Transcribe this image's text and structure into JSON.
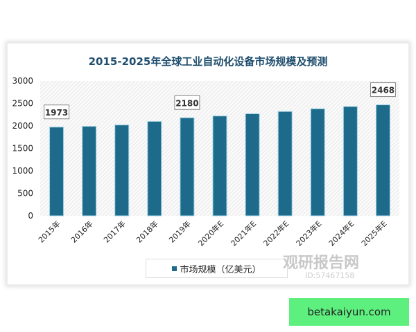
{
  "chart_data": {
    "type": "bar",
    "title": "2015-2025年全球工业自动化设备市场规模及预测",
    "categories": [
      "2015年",
      "2016年",
      "2017年",
      "2018年",
      "2019年",
      "2020年E",
      "2021年E",
      "2022年E",
      "2023年E",
      "2024年E",
      "2025年E"
    ],
    "series": [
      {
        "name": "市场规模（亿美元）",
        "values": [
          1973,
          1990,
          2020,
          2100,
          2180,
          2220,
          2270,
          2320,
          2380,
          2430,
          2468
        ]
      }
    ],
    "data_labels": {
      "0": "1973",
      "4": "2180",
      "10": "2468"
    },
    "yticks": [
      0,
      500,
      1000,
      1500,
      2000,
      2500,
      3000
    ],
    "ylim": [
      0,
      3000
    ],
    "legend": "bottom",
    "bar_color": "#1e6a8a"
  },
  "watermark": {
    "brand": "观研报告网",
    "sub": "ID:57467158"
  },
  "site_label": "betakaiyun.com"
}
